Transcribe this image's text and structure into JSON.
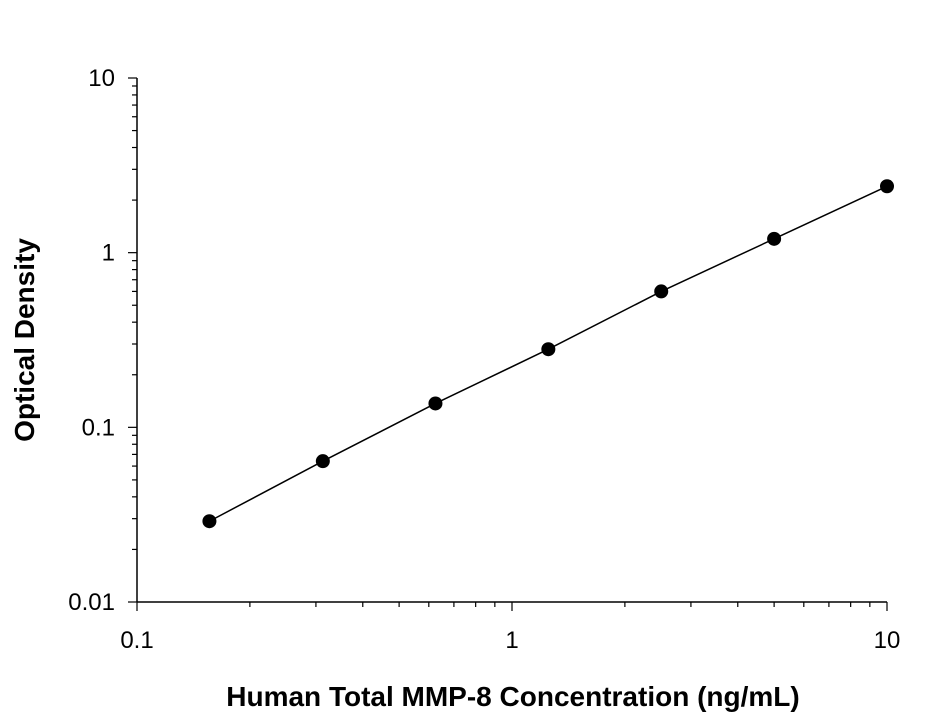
{
  "chart_data": {
    "type": "scatter",
    "title": "",
    "xlabel": "Human Total MMP-8 Concentration (ng/mL)",
    "ylabel": "Optical Density",
    "x_scale": "log",
    "y_scale": "log",
    "xlim": [
      0.1,
      10
    ],
    "ylim": [
      0.01,
      10
    ],
    "grid": false,
    "legend": "none",
    "x_ticks": [
      {
        "value": 0.1,
        "label": "0.1"
      },
      {
        "value": 1,
        "label": "1"
      },
      {
        "value": 10,
        "label": "10"
      }
    ],
    "y_ticks": [
      {
        "value": 0.01,
        "label": "0.01"
      },
      {
        "value": 0.1,
        "label": "0.1"
      },
      {
        "value": 1,
        "label": "1"
      },
      {
        "value": 10,
        "label": "10"
      }
    ],
    "series": [
      {
        "x": [
          0.156,
          0.313,
          0.625,
          1.25,
          2.5,
          5,
          10
        ],
        "y": [
          0.029,
          0.064,
          0.137,
          0.28,
          0.6,
          1.2,
          2.4
        ],
        "marker": "circle",
        "line": "fit",
        "color": "#000000"
      }
    ]
  }
}
